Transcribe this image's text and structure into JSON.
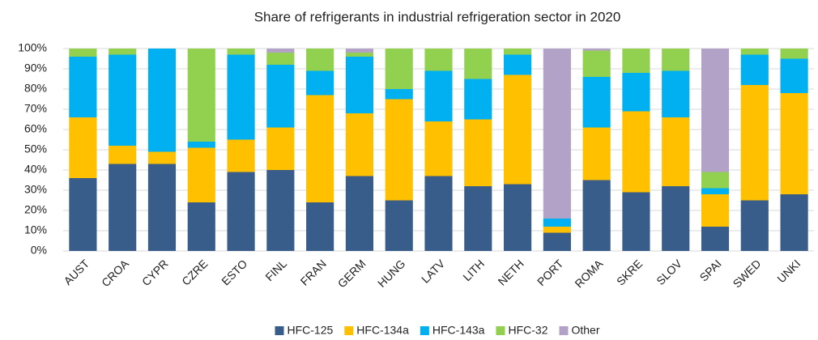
{
  "chart_data": {
    "type": "stacked_bar",
    "title": "Share of refrigerants in industrial refrigeration sector in 2020",
    "categories": [
      "AUST",
      "CROA",
      "CYPR",
      "CZRE",
      "ESTO",
      "FINL",
      "FRAN",
      "GERM",
      "HUNG",
      "LATV",
      "LITH",
      "NETH",
      "PORT",
      "ROMA",
      "SKRE",
      "SLOV",
      "SPAI",
      "SWED",
      "UNKI"
    ],
    "series": [
      {
        "name": "HFC-125",
        "color": "#385d8a",
        "values": [
          36,
          43,
          43,
          24,
          39,
          40,
          24,
          37,
          25,
          37,
          32,
          33,
          9,
          35,
          29,
          32,
          12,
          25,
          28
        ]
      },
      {
        "name": "HFC-134a",
        "color": "#ffc000",
        "values": [
          30,
          9,
          6,
          27,
          16,
          21,
          53,
          31,
          50,
          27,
          33,
          54,
          3,
          26,
          40,
          34,
          16,
          57,
          50
        ]
      },
      {
        "name": "HFC-143a",
        "color": "#00b0f0",
        "values": [
          30,
          45,
          51,
          3,
          42,
          31,
          12,
          28,
          5,
          25,
          20,
          10,
          4,
          25,
          19,
          23,
          3,
          15,
          17
        ]
      },
      {
        "name": "HFC-32",
        "color": "#92d050",
        "values": [
          4,
          3,
          0,
          46,
          3,
          6,
          11,
          2,
          20,
          11,
          15,
          3,
          0,
          13,
          12,
          11,
          8,
          3,
          5
        ]
      },
      {
        "name": "Other",
        "color": "#b3a2c7",
        "values": [
          0,
          0,
          0,
          0,
          0,
          2,
          0,
          2,
          0,
          0,
          0,
          0,
          84,
          1,
          0,
          0,
          61,
          0,
          0
        ]
      }
    ],
    "ylim": [
      0,
      100
    ],
    "yticks": [
      {
        "value": 0,
        "label": "0%"
      },
      {
        "value": 10,
        "label": "10%"
      },
      {
        "value": 20,
        "label": "20%"
      },
      {
        "value": 30,
        "label": "30%"
      },
      {
        "value": 40,
        "label": "40%"
      },
      {
        "value": 50,
        "label": "50%"
      },
      {
        "value": 60,
        "label": "60%"
      },
      {
        "value": 70,
        "label": "70%"
      },
      {
        "value": 80,
        "label": "80%"
      },
      {
        "value": 90,
        "label": "90%"
      },
      {
        "value": 100,
        "label": "100%"
      }
    ],
    "grid": true,
    "legend": "bottom"
  }
}
